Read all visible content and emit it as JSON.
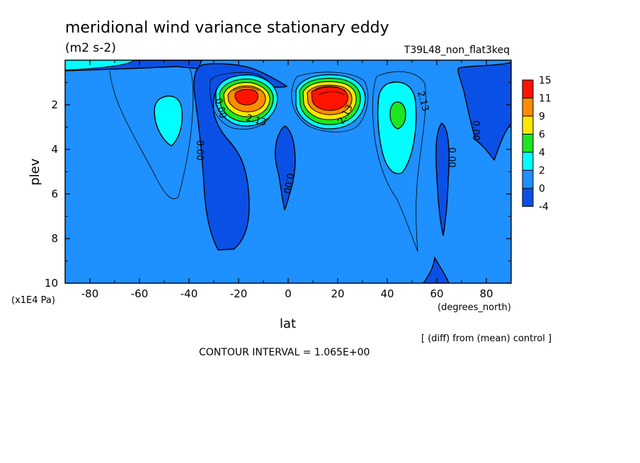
{
  "chart_data": {
    "type": "contour",
    "title": "meridional wind variance  stationary eddy",
    "units": "(m2 s-2)",
    "experiment": "T39L48_non_flat3keq",
    "xlabel": "lat",
    "x_units": "(degrees_north)",
    "ylabel": "plev",
    "y_units": "(x1E4 Pa)",
    "xlim": [
      -90,
      90
    ],
    "ylim": [
      10,
      0
    ],
    "x_ticks": [
      -80,
      -60,
      -40,
      -20,
      0,
      20,
      40,
      60,
      80
    ],
    "y_ticks": [
      2,
      4,
      6,
      8,
      10
    ],
    "contour_interval_text": "CONTOUR INTERVAL = 1.065E+00",
    "note": "[ (diff) from (mean) control ]",
    "contour_labels": [
      "0.00",
      "2.13"
    ],
    "colorbar": {
      "levels": [
        15,
        11,
        9,
        6,
        4,
        2,
        0,
        -4
      ],
      "colors": [
        "#ff1400",
        "#ff8c00",
        "#ffe600",
        "#1ee61e",
        "#00ffff",
        "#1e90ff",
        "#0a50e6"
      ]
    },
    "features": [
      {
        "name": "southern jet maximum",
        "lat": -17,
        "plev": 1.7,
        "value": 11
      },
      {
        "name": "northern jet maximum",
        "lat": 16,
        "plev": 1.7,
        "value": 15
      },
      {
        "name": "northern midlatitude maximum",
        "lat": 44,
        "plev": 2.5,
        "value": 4
      },
      {
        "name": "southern midlatitude maximum",
        "lat": -48,
        "plev": 2.6,
        "value": 2
      },
      {
        "name": "negative region",
        "lat": -30,
        "plev": 5,
        "value": -1
      },
      {
        "name": "negative region",
        "lat": 0,
        "plev": 5,
        "value": -1
      },
      {
        "name": "negative region",
        "lat": 65,
        "plev": 5,
        "value": -1
      },
      {
        "name": "negative region",
        "lat": 80,
        "plev": 4,
        "value": -1
      }
    ]
  }
}
